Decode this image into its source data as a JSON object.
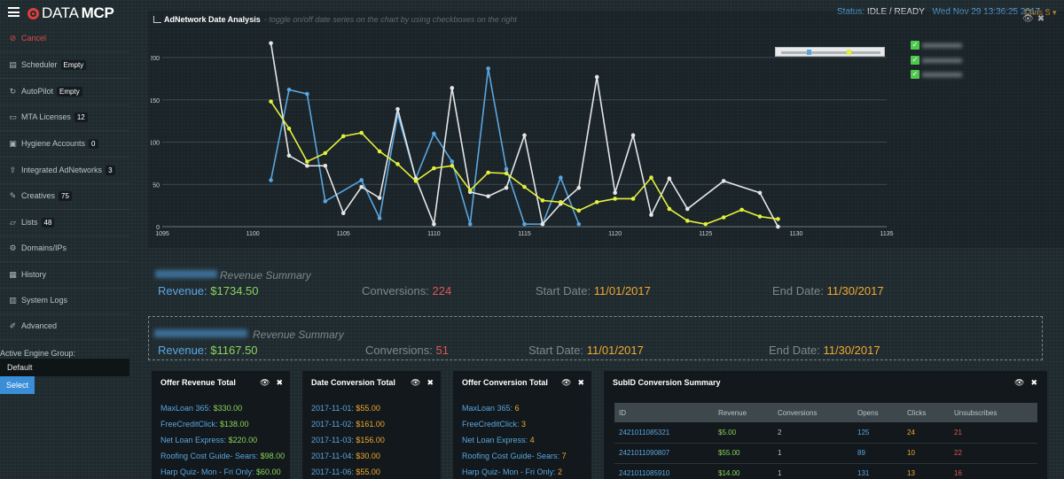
{
  "header": {
    "logo_text": "DATA",
    "logo_bold": "MCP",
    "status_label": "Status:",
    "status_value": "IDLE / READY",
    "datetime": "Wed Nov 29 13:36:25 2017",
    "user": "Chris S"
  },
  "sidebar": {
    "items": [
      {
        "label": "Cancel",
        "icon": "cancel-icon",
        "badge": ""
      },
      {
        "label": "Scheduler",
        "icon": "calendar-icon",
        "badge": "Empty"
      },
      {
        "label": "AutoPilot",
        "icon": "refresh-icon",
        "badge": "Empty"
      },
      {
        "label": "MTA Licenses",
        "icon": "license-icon",
        "badge": "12"
      },
      {
        "label": "Hygiene Accounts",
        "icon": "hygiene-icon",
        "badge": "0"
      },
      {
        "label": "Integrated AdNetworks",
        "icon": "upload-icon",
        "badge": "3"
      },
      {
        "label": "Creatives",
        "icon": "edit-icon",
        "badge": "75"
      },
      {
        "label": "Lists",
        "icon": "folder-icon",
        "badge": "48"
      },
      {
        "label": "Domains/IPs",
        "icon": "gears-icon",
        "badge": ""
      },
      {
        "label": "History",
        "icon": "history-icon",
        "badge": ""
      },
      {
        "label": "System Logs",
        "icon": "logs-icon",
        "badge": ""
      },
      {
        "label": "Advanced",
        "icon": "wrench-icon",
        "badge": ""
      }
    ],
    "engine_group_label": "Active Engine Group:",
    "engine_group_value": "Default",
    "select_button": "Select"
  },
  "chart_header": {
    "title": "AdNetwork Date Analysis",
    "hint": "- toggle on/off date series on the chart by using checkboxes on the right"
  },
  "chart_data": {
    "type": "line",
    "title": "",
    "xlabel": "",
    "ylabel": "",
    "xlim": [
      1095,
      1135
    ],
    "ylim": [
      0,
      200
    ],
    "x_ticks": [
      1095,
      1100,
      1105,
      1110,
      1115,
      1120,
      1125,
      1130,
      1135
    ],
    "y_ticks": [
      0,
      50,
      100,
      150,
      200
    ],
    "grid": true,
    "legend": "top-right",
    "series": [
      {
        "color": "#5aa6e0",
        "x": [
          1101,
          1102,
          1103,
          1104,
          1106,
          1107,
          1108,
          1109,
          1110,
          1111,
          1112,
          1113,
          1114,
          1115,
          1116,
          1117,
          1118
        ],
        "values": [
          55,
          162,
          157,
          30,
          55,
          10,
          133,
          57,
          110,
          77,
          3,
          187,
          68,
          3,
          3,
          58,
          3
        ]
      },
      {
        "color": "#e6e6e6",
        "x": [
          1101,
          1102,
          1103,
          1104,
          1105,
          1106,
          1107,
          1108,
          1109,
          1110,
          1111,
          1112,
          1113,
          1114,
          1115,
          1116,
          1117,
          1118,
          1119,
          1120,
          1121,
          1122,
          1123,
          1124,
          1126,
          1128,
          1129
        ],
        "values": [
          217,
          84,
          72,
          72,
          16,
          47,
          34,
          139,
          57,
          3,
          164,
          41,
          36,
          46,
          108,
          3,
          27,
          46,
          177,
          40,
          108,
          14,
          57,
          21,
          54,
          40,
          0
        ]
      },
      {
        "color": "#e4f03b",
        "x": [
          1101,
          1102,
          1103,
          1104,
          1105,
          1106,
          1107,
          1108,
          1109,
          1110,
          1111,
          1112,
          1113,
          1114,
          1115,
          1116,
          1117,
          1118,
          1119,
          1120,
          1121,
          1122,
          1123,
          1124,
          1125,
          1126,
          1127,
          1128,
          1129
        ],
        "values": [
          148,
          116,
          77,
          87,
          107,
          111,
          89,
          74,
          54,
          69,
          72,
          43,
          64,
          63,
          47,
          31,
          29,
          19,
          29,
          33,
          33,
          58,
          21,
          7,
          3,
          11,
          20,
          12,
          9
        ]
      }
    ]
  },
  "summary_1": {
    "title": "Revenue Summary",
    "revenue_label": "Revenue:",
    "revenue": "$1734.50",
    "conversions_label": "Conversions:",
    "conversions": "224",
    "start_label": "Start Date:",
    "start": "11/01/2017",
    "end_label": "End Date:",
    "end": "11/30/2017"
  },
  "summary_2": {
    "title": "Revenue Summary",
    "revenue_label": "Revenue:",
    "revenue": "$1167.50",
    "conversions_label": "Conversions:",
    "conversions": "51",
    "start_label": "Start Date:",
    "start": "11/01/2017",
    "end_label": "End Date:",
    "end": "11/30/2017"
  },
  "offer_revenue": {
    "title": "Offer Revenue Total",
    "rows": [
      {
        "k": "MaxLoan 365",
        "v": "$330.00"
      },
      {
        "k": "FreeCreditClick",
        "v": "$138.00"
      },
      {
        "k": "Net Loan Express",
        "v": "$220.00"
      },
      {
        "k": "Roofing Cost Guide- Sears",
        "v": "$98.00"
      },
      {
        "k": "Harp Quiz- Mon - Fri Only",
        "v": "$60.00"
      }
    ]
  },
  "date_conversion": {
    "title": "Date Conversion Total",
    "rows": [
      {
        "k": "2017-11-01",
        "v": "$55.00"
      },
      {
        "k": "2017-11-02",
        "v": "$161.00"
      },
      {
        "k": "2017-11-03",
        "v": "$156.00"
      },
      {
        "k": "2017-11-04",
        "v": "$30.00"
      },
      {
        "k": "2017-11-06",
        "v": "$55.00"
      }
    ]
  },
  "offer_conversion": {
    "title": "Offer Conversion Total",
    "rows": [
      {
        "k": "MaxLoan 365",
        "v": "6"
      },
      {
        "k": "FreeCreditClick",
        "v": "3"
      },
      {
        "k": "Net Loan Express",
        "v": "4"
      },
      {
        "k": "Roofing Cost Guide- Sears",
        "v": "7"
      },
      {
        "k": "Harp Quiz- Mon - Fri Only",
        "v": "2"
      }
    ]
  },
  "subid": {
    "title": "SubID Conversion Summary",
    "columns": [
      "ID",
      "Revenue",
      "Conversions",
      "Opens",
      "Clicks",
      "Unsubscribes"
    ],
    "rows": [
      [
        "2421011085321",
        "$5.00",
        "2",
        "125",
        "24",
        "21"
      ],
      [
        "2421011090807",
        "$55.00",
        "1",
        "89",
        "10",
        "22"
      ],
      [
        "2421011085910",
        "$14.00",
        "1",
        "131",
        "13",
        "16"
      ]
    ]
  }
}
